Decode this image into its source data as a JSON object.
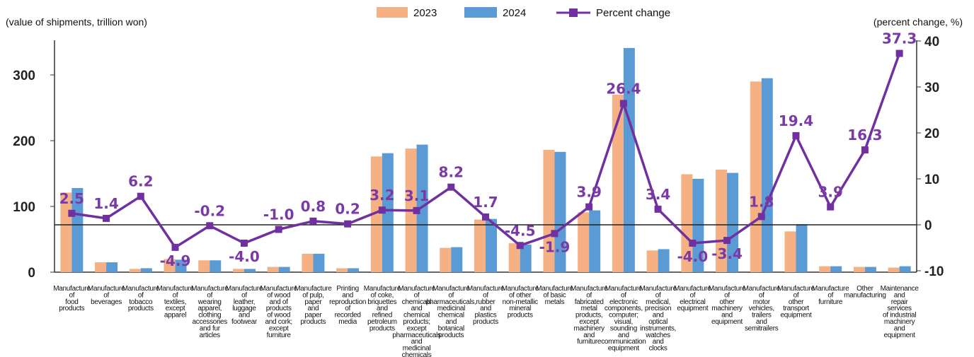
{
  "chart_data": {
    "type": "bar",
    "left_axis_label": "(value of shipments, trillion won)",
    "right_axis_label": "(percent change, %)",
    "ylim": [
      0,
      350
    ],
    "y2lim": [
      -10,
      40
    ],
    "yticks": [
      "0",
      "100",
      "200",
      "300"
    ],
    "y2ticks": [
      "-10",
      "0",
      "10",
      "20",
      "30",
      "40"
    ],
    "legend": {
      "placement": "top-center",
      "entries": [
        "2023",
        "2024",
        "Percent change"
      ]
    },
    "colors": {
      "bar2023": "#f5b183",
      "bar2024": "#5b9bd5",
      "line": "#7030a0",
      "label": "#7a3aa6"
    },
    "categories": [
      "Manufacture of food products",
      "Manufacture of beverages",
      "Manufacture of tobacco products",
      "Manufacture of textiles, except apparel",
      "Manufacture of wearing apparel, clothing accessories and fur articles",
      "Manufacture of leather, luggage and footwear",
      "Manufacture of wood and of products of wood and cork; except furniture",
      "Manufacture of pulp, paper and paper products",
      "Printing and reproduction of recorded media",
      "Manufacture of coke, briquettes and refined petroleum products",
      "Manufacture of chemicals and chemical products; except pharmaceuticals and medicinal chemicals",
      "Manufacture of pharmaceuticals, medicinal chemical and botanical products",
      "Manufacture of rubber and plastics products",
      "Manufacture of other non-metallic mineral products",
      "Manufacture of basic metals",
      "Manufacture of fabricated metal products, except machinery and furniture",
      "Manufacture of electronic components, computer; visual, sounding and communication equipment",
      "Manufacture of medical, precision and optical instruments, watches and clocks",
      "Manufacture of electrical equipment",
      "Manufacture of other machinery and equipment",
      "Manufacture of motor vehicles, trailers and semitrailers",
      "Manufacture of other transport equipment",
      "Manufacture of furniture",
      "Other manufacturing",
      "Maintenance and repair services of industrial machinery and equipment"
    ],
    "category_lines": [
      [
        "Manufacture",
        "of",
        "food",
        "products"
      ],
      [
        "Manufacture",
        "of",
        "beverages"
      ],
      [
        "Manufacture",
        "of",
        "tobacco",
        "products"
      ],
      [
        "Manufacture",
        "of",
        "textiles,",
        "except",
        "apparel"
      ],
      [
        "Manufacture",
        "of",
        "wearing",
        "apparel,",
        "clothing",
        "accessories",
        "and fur",
        "articles"
      ],
      [
        "Manufacture",
        "of",
        "leather,",
        "luggage",
        "and",
        "footwear"
      ],
      [
        "Manufacture",
        "of wood",
        "and of",
        "products",
        "of wood",
        "and cork;",
        "except",
        "furniture"
      ],
      [
        "Manufacture",
        "of pulp,",
        "paper",
        "and",
        "paper",
        "products"
      ],
      [
        "Printing",
        "and",
        "reproduction",
        "of",
        "recorded",
        "media"
      ],
      [
        "Manufacture",
        "of coke,",
        "briquettes",
        "and",
        "refined",
        "petroleum",
        "products"
      ],
      [
        "Manufacture",
        "of",
        "chemicals",
        "and",
        "chemical",
        "products;",
        "except",
        "pharmaceuticals",
        "and",
        "medicinal",
        "chemicals"
      ],
      [
        "Manufacture",
        "of",
        "pharmaceuticals,",
        "medicinal",
        "chemical",
        "and",
        "botanical",
        "products"
      ],
      [
        "Manufacture",
        "of",
        "rubber",
        "and",
        "plastics",
        "products"
      ],
      [
        "Manufacture",
        "of other",
        "non-metallic",
        "mineral",
        "products"
      ],
      [
        "Manufacture",
        "of basic",
        "metals"
      ],
      [
        "Manufacture",
        "of",
        "fabricated",
        "metal",
        "products,",
        "except",
        "machinery",
        "and",
        "furniture"
      ],
      [
        "Manufacture",
        "of",
        "electronic",
        "components,",
        "computer;",
        "visual,",
        "sounding",
        "and",
        "communication",
        "equipment"
      ],
      [
        "Manufacture",
        "of",
        "medical,",
        "precision",
        "and",
        "optical",
        "instruments,",
        "watches",
        "and",
        "clocks"
      ],
      [
        "Manufacture",
        "of",
        "electrical",
        "equipment"
      ],
      [
        "Manufacture",
        "of",
        "other",
        "machinery",
        "and",
        "equipment"
      ],
      [
        "Manufacture",
        "of",
        "motor",
        "vehicles,",
        "trailers",
        "and",
        "semitrailers"
      ],
      [
        "Manufacture",
        "of",
        "other",
        "transport",
        "equipment"
      ],
      [
        "Manufacture",
        "of",
        "furniture"
      ],
      [
        "Other",
        "manufacturing"
      ],
      [
        "Maintenance",
        "and",
        "repair",
        "services",
        "of industrial",
        "machinery",
        "and",
        "equipment"
      ]
    ],
    "series": [
      {
        "name": "2023",
        "values": [
          121,
          15,
          5,
          20,
          18,
          5,
          8,
          28,
          6,
          176,
          188,
          37,
          80,
          44,
          186,
          91,
          270,
          33,
          149,
          156,
          290,
          62,
          9,
          8,
          7
        ]
      },
      {
        "name": "2024",
        "values": [
          128,
          15,
          6,
          19,
          18,
          5,
          8,
          28,
          6,
          181,
          194,
          38,
          81,
          42,
          183,
          94,
          341,
          35,
          142,
          151,
          295,
          73,
          9,
          8,
          9
        ]
      }
    ],
    "percent_change": {
      "name": "Percent change",
      "values": [
        2.5,
        1.4,
        6.2,
        -4.9,
        -0.2,
        -4.0,
        -1.0,
        0.8,
        0.2,
        3.2,
        3.1,
        8.2,
        1.7,
        -4.5,
        -1.9,
        3.9,
        26.4,
        3.4,
        -4.0,
        -3.4,
        1.8,
        19.4,
        3.9,
        16.3,
        37.3
      ],
      "labels": [
        "2.5",
        "1.4",
        "6.2",
        "-4.9",
        "-0.2",
        "-4.0",
        "-1.0",
        "0.8",
        "0.2",
        "3.2",
        "3.1",
        "8.2",
        "1.7",
        "-4.5",
        "-1.9",
        "3.9",
        "26.4",
        "3.4",
        "-4.0",
        "-3.4",
        "1.8",
        "19.4",
        "3.9",
        "16.3",
        "37.3"
      ]
    }
  }
}
